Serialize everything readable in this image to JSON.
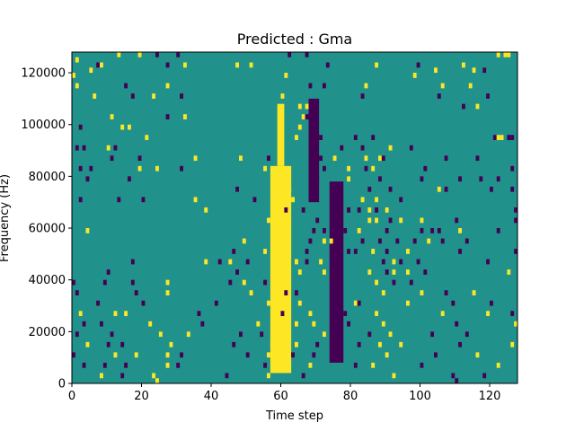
{
  "chart_data": {
    "type": "heatmap",
    "title": "Predicted : Gma",
    "xlabel": "Time step",
    "ylabel": "Frequency (Hz)",
    "xlim": [
      0,
      128
    ],
    "ylim": [
      0,
      128000
    ],
    "xticks": [
      0,
      20,
      40,
      60,
      80,
      100,
      120
    ],
    "yticks": [
      0,
      20000,
      40000,
      60000,
      80000,
      100000,
      120000
    ],
    "xtick_labels": [
      "0",
      "20",
      "40",
      "60",
      "80",
      "100",
      "120"
    ],
    "ytick_labels": [
      "0",
      "20000",
      "40000",
      "60000",
      "80000",
      "100000",
      "120000"
    ],
    "grid": false,
    "n_time_steps": 128,
    "n_freq_bins": 64,
    "colors": {
      "background": "#21918c",
      "high": "#fde725",
      "low": "#440154"
    },
    "vertical_bands": [
      {
        "value": "high",
        "x_start": 57,
        "x_end": 62,
        "freq_start": 4000,
        "freq_end": 84000
      },
      {
        "value": "high",
        "x_start": 59,
        "x_end": 60,
        "freq_start": 84000,
        "freq_end": 108000
      },
      {
        "value": "low",
        "x_start": 68,
        "x_end": 70,
        "freq_start": 70000,
        "freq_end": 110000
      },
      {
        "value": "low",
        "x_start": 74,
        "x_end": 77,
        "freq_start": 8000,
        "freq_end": 78000
      }
    ],
    "cells": [
      [
        7,
        122,
        "low"
      ],
      [
        13,
        126,
        "high"
      ],
      [
        19,
        126,
        "high"
      ],
      [
        24,
        126,
        "low"
      ],
      [
        30,
        126,
        "low"
      ],
      [
        62,
        126,
        "low"
      ],
      [
        67,
        126,
        "low"
      ],
      [
        122,
        126,
        "high"
      ],
      [
        124,
        126,
        "high"
      ],
      [
        125,
        126,
        "high"
      ],
      [
        1,
        124,
        "high"
      ],
      [
        8,
        122,
        "high"
      ],
      [
        27,
        122,
        "low"
      ],
      [
        32,
        122,
        "high"
      ],
      [
        47,
        122,
        "high"
      ],
      [
        51,
        122,
        "high"
      ],
      [
        73,
        122,
        "low"
      ],
      [
        87,
        122,
        "high"
      ],
      [
        99,
        122,
        "low"
      ],
      [
        112,
        122,
        "high"
      ],
      [
        0,
        118,
        "high"
      ],
      [
        5,
        120,
        "high"
      ],
      [
        61,
        118,
        "high"
      ],
      [
        98,
        118,
        "high"
      ],
      [
        104,
        120,
        "high"
      ],
      [
        115,
        120,
        "high"
      ],
      [
        118,
        120,
        "low"
      ],
      [
        1,
        114,
        "high"
      ],
      [
        15,
        114,
        "low"
      ],
      [
        27,
        114,
        "high"
      ],
      [
        68,
        114,
        "low"
      ],
      [
        72,
        114,
        "low"
      ],
      [
        84,
        114,
        "high"
      ],
      [
        106,
        114,
        "high"
      ],
      [
        114,
        114,
        "high"
      ],
      [
        6,
        110,
        "high"
      ],
      [
        17,
        110,
        "low"
      ],
      [
        23,
        110,
        "high"
      ],
      [
        31,
        110,
        "low"
      ],
      [
        60,
        110,
        "high"
      ],
      [
        83,
        110,
        "low"
      ],
      [
        105,
        110,
        "low"
      ],
      [
        119,
        110,
        "low"
      ],
      [
        65,
        106,
        "high"
      ],
      [
        66,
        102,
        "high"
      ],
      [
        67,
        106,
        "high"
      ],
      [
        112,
        106,
        "low"
      ],
      [
        116,
        106,
        "high"
      ],
      [
        11,
        102,
        "high"
      ],
      [
        27,
        102,
        "low"
      ],
      [
        32,
        102,
        "high"
      ],
      [
        65,
        98,
        "high"
      ],
      [
        67,
        102,
        "low"
      ],
      [
        2,
        98,
        "low"
      ],
      [
        14,
        98,
        "high"
      ],
      [
        16,
        98,
        "high"
      ],
      [
        71,
        94,
        "low"
      ],
      [
        86,
        94,
        "low"
      ],
      [
        121,
        94,
        "low"
      ],
      [
        122,
        94,
        "high"
      ],
      [
        123,
        94,
        "high"
      ],
      [
        125,
        94,
        "low"
      ],
      [
        126,
        94,
        "low"
      ],
      [
        21,
        94,
        "high"
      ],
      [
        64,
        94,
        "high"
      ],
      [
        81,
        94,
        "low"
      ],
      [
        91,
        90,
        "high"
      ],
      [
        97,
        90,
        "low"
      ],
      [
        1,
        90,
        "low"
      ],
      [
        3,
        90,
        "low"
      ],
      [
        10,
        90,
        "high"
      ],
      [
        12,
        90,
        "low"
      ],
      [
        77,
        90,
        "low"
      ],
      [
        83,
        90,
        "low"
      ],
      [
        84,
        86,
        "high"
      ],
      [
        88,
        86,
        "high"
      ],
      [
        89,
        86,
        "low"
      ],
      [
        19,
        86,
        "low"
      ],
      [
        24,
        82,
        "high"
      ],
      [
        35,
        86,
        "high"
      ],
      [
        48,
        86,
        "high"
      ],
      [
        56,
        86,
        "low"
      ],
      [
        71,
        86,
        "low"
      ],
      [
        72,
        82,
        "low"
      ],
      [
        75,
        86,
        "high"
      ],
      [
        107,
        86,
        "low"
      ],
      [
        116,
        86,
        "low"
      ],
      [
        2,
        82,
        "low"
      ],
      [
        5,
        82,
        "low"
      ],
      [
        11,
        86,
        "low"
      ],
      [
        19,
        82,
        "high"
      ],
      [
        31,
        82,
        "low"
      ],
      [
        55,
        82,
        "high"
      ],
      [
        79,
        82,
        "high"
      ],
      [
        84,
        82,
        "low"
      ],
      [
        86,
        82,
        "high"
      ],
      [
        101,
        82,
        "low"
      ],
      [
        126,
        82,
        "low"
      ],
      [
        4,
        78,
        "low"
      ],
      [
        16,
        78,
        "low"
      ],
      [
        70,
        78,
        "low"
      ],
      [
        79,
        78,
        "high"
      ],
      [
        88,
        78,
        "low"
      ],
      [
        100,
        78,
        "low"
      ],
      [
        111,
        78,
        "low"
      ],
      [
        117,
        78,
        "low"
      ],
      [
        122,
        78,
        "low"
      ],
      [
        47,
        74,
        "low"
      ],
      [
        62,
        74,
        "high"
      ],
      [
        85,
        74,
        "low"
      ],
      [
        91,
        74,
        "low"
      ],
      [
        105,
        74,
        "high"
      ],
      [
        107,
        74,
        "low"
      ],
      [
        120,
        74,
        "low"
      ],
      [
        126,
        74,
        "low"
      ],
      [
        2,
        70,
        "low"
      ],
      [
        13,
        70,
        "low"
      ],
      [
        20,
        70,
        "low"
      ],
      [
        35,
        70,
        "high"
      ],
      [
        52,
        70,
        "low"
      ],
      [
        63,
        70,
        "high"
      ],
      [
        75,
        70,
        "low"
      ],
      [
        83,
        70,
        "high"
      ],
      [
        87,
        70,
        "high"
      ],
      [
        94,
        70,
        "low"
      ],
      [
        38,
        66,
        "high"
      ],
      [
        58,
        66,
        "high"
      ],
      [
        61,
        66,
        "low"
      ],
      [
        66,
        66,
        "low"
      ],
      [
        79,
        66,
        "low"
      ],
      [
        82,
        66,
        "low"
      ],
      [
        85,
        66,
        "high"
      ],
      [
        87,
        66,
        "low"
      ],
      [
        90,
        66,
        "high"
      ],
      [
        127,
        66,
        "low"
      ],
      [
        56,
        62,
        "high"
      ],
      [
        70,
        62,
        "low"
      ],
      [
        85,
        62,
        "high"
      ],
      [
        87,
        62,
        "high"
      ],
      [
        91,
        62,
        "low"
      ],
      [
        94,
        62,
        "high"
      ],
      [
        100,
        62,
        "high"
      ],
      [
        110,
        62,
        "low"
      ],
      [
        127,
        62,
        "low"
      ],
      [
        4,
        58,
        "high"
      ],
      [
        69,
        58,
        "low"
      ],
      [
        72,
        58,
        "low"
      ],
      [
        78,
        58,
        "low"
      ],
      [
        82,
        58,
        "high"
      ],
      [
        90,
        58,
        "low"
      ],
      [
        100,
        58,
        "low"
      ],
      [
        103,
        58,
        "low"
      ],
      [
        105,
        58,
        "low"
      ],
      [
        111,
        58,
        "high"
      ],
      [
        122,
        58,
        "low"
      ],
      [
        49,
        54,
        "high"
      ],
      [
        68,
        54,
        "low"
      ],
      [
        72,
        54,
        "high"
      ],
      [
        74,
        54,
        "high"
      ],
      [
        83,
        54,
        "low"
      ],
      [
        88,
        54,
        "low"
      ],
      [
        93,
        54,
        "low"
      ],
      [
        98,
        54,
        "low"
      ],
      [
        102,
        54,
        "high"
      ],
      [
        106,
        54,
        "low"
      ],
      [
        113,
        54,
        "low"
      ],
      [
        46,
        50,
        "low"
      ],
      [
        55,
        50,
        "high"
      ],
      [
        67,
        50,
        "low"
      ],
      [
        79,
        50,
        "low"
      ],
      [
        81,
        50,
        "low"
      ],
      [
        86,
        50,
        "high"
      ],
      [
        90,
        50,
        "low"
      ],
      [
        96,
        50,
        "high"
      ],
      [
        111,
        50,
        "low"
      ],
      [
        127,
        50,
        "low"
      ],
      [
        17,
        46,
        "low"
      ],
      [
        38,
        46,
        "high"
      ],
      [
        42,
        46,
        "low"
      ],
      [
        45,
        46,
        "high"
      ],
      [
        50,
        46,
        "low"
      ],
      [
        64,
        46,
        "high"
      ],
      [
        67,
        46,
        "low"
      ],
      [
        71,
        46,
        "high"
      ],
      [
        89,
        46,
        "low"
      ],
      [
        92,
        46,
        "high"
      ],
      [
        94,
        46,
        "low"
      ],
      [
        99,
        46,
        "low"
      ],
      [
        119,
        46,
        "low"
      ],
      [
        10,
        42,
        "low"
      ],
      [
        47,
        42,
        "low"
      ],
      [
        65,
        42,
        "high"
      ],
      [
        72,
        42,
        "high"
      ],
      [
        85,
        42,
        "high"
      ],
      [
        90,
        42,
        "low"
      ],
      [
        92,
        42,
        "high"
      ],
      [
        96,
        42,
        "high"
      ],
      [
        101,
        42,
        "low"
      ],
      [
        125,
        42,
        "high"
      ],
      [
        0,
        38,
        "low"
      ],
      [
        9,
        38,
        "low"
      ],
      [
        17,
        38,
        "low"
      ],
      [
        27,
        38,
        "high"
      ],
      [
        45,
        38,
        "low"
      ],
      [
        49,
        38,
        "high"
      ],
      [
        55,
        38,
        "low"
      ],
      [
        61,
        38,
        "high"
      ],
      [
        87,
        38,
        "high"
      ],
      [
        92,
        38,
        "low"
      ],
      [
        97,
        38,
        "low"
      ],
      [
        1,
        34,
        "low"
      ],
      [
        18,
        34,
        "low"
      ],
      [
        27,
        34,
        "high"
      ],
      [
        51,
        34,
        "high"
      ],
      [
        61,
        34,
        "low"
      ],
      [
        64,
        34,
        "low"
      ],
      [
        89,
        34,
        "high"
      ],
      [
        100,
        34,
        "high"
      ],
      [
        107,
        34,
        "low"
      ],
      [
        115,
        34,
        "high"
      ],
      [
        7,
        30,
        "low"
      ],
      [
        20,
        30,
        "low"
      ],
      [
        41,
        30,
        "low"
      ],
      [
        56,
        30,
        "high"
      ],
      [
        65,
        30,
        "high"
      ],
      [
        81,
        30,
        "high"
      ],
      [
        82,
        30,
        "low"
      ],
      [
        96,
        30,
        "high"
      ],
      [
        109,
        30,
        "low"
      ],
      [
        120,
        30,
        "low"
      ],
      [
        2,
        26,
        "high"
      ],
      [
        12,
        26,
        "high"
      ],
      [
        15,
        26,
        "high"
      ],
      [
        36,
        26,
        "low"
      ],
      [
        60,
        26,
        "low"
      ],
      [
        68,
        26,
        "high"
      ],
      [
        78,
        26,
        "low"
      ],
      [
        87,
        26,
        "high"
      ],
      [
        106,
        26,
        "high"
      ],
      [
        119,
        26,
        "high"
      ],
      [
        126,
        26,
        "low"
      ],
      [
        3,
        22,
        "low"
      ],
      [
        8,
        22,
        "low"
      ],
      [
        22,
        22,
        "high"
      ],
      [
        37,
        22,
        "low"
      ],
      [
        53,
        22,
        "high"
      ],
      [
        64,
        22,
        "high"
      ],
      [
        69,
        22,
        "high"
      ],
      [
        79,
        22,
        "low"
      ],
      [
        89,
        22,
        "high"
      ],
      [
        110,
        22,
        "low"
      ],
      [
        127,
        22,
        "high"
      ],
      [
        1,
        18,
        "low"
      ],
      [
        11,
        18,
        "low"
      ],
      [
        25,
        18,
        "high"
      ],
      [
        33,
        18,
        "high"
      ],
      [
        48,
        18,
        "low"
      ],
      [
        54,
        18,
        "low"
      ],
      [
        72,
        18,
        "high"
      ],
      [
        85,
        18,
        "low"
      ],
      [
        91,
        18,
        "high"
      ],
      [
        103,
        18,
        "low"
      ],
      [
        113,
        18,
        "low"
      ],
      [
        4,
        14,
        "high"
      ],
      [
        10,
        14,
        "low"
      ],
      [
        14,
        14,
        "low"
      ],
      [
        28,
        14,
        "high"
      ],
      [
        46,
        14,
        "low"
      ],
      [
        57,
        14,
        "high"
      ],
      [
        64,
        14,
        "high"
      ],
      [
        70,
        14,
        "low"
      ],
      [
        82,
        14,
        "low"
      ],
      [
        88,
        14,
        "high"
      ],
      [
        94,
        14,
        "high"
      ],
      [
        111,
        14,
        "low"
      ],
      [
        126,
        14,
        "high"
      ],
      [
        0,
        10,
        "low"
      ],
      [
        12,
        10,
        "high"
      ],
      [
        18,
        10,
        "high"
      ],
      [
        27,
        10,
        "high"
      ],
      [
        31,
        10,
        "low"
      ],
      [
        50,
        10,
        "low"
      ],
      [
        56,
        10,
        "high"
      ],
      [
        63,
        10,
        "low"
      ],
      [
        69,
        10,
        "low"
      ],
      [
        76,
        10,
        "low"
      ],
      [
        90,
        10,
        "high"
      ],
      [
        104,
        10,
        "low"
      ],
      [
        116,
        10,
        "high"
      ],
      [
        3,
        6,
        "low"
      ],
      [
        9,
        6,
        "low"
      ],
      [
        15,
        6,
        "low"
      ],
      [
        27,
        6,
        "high"
      ],
      [
        30,
        6,
        "low"
      ],
      [
        55,
        6,
        "low"
      ],
      [
        68,
        6,
        "high"
      ],
      [
        81,
        6,
        "low"
      ],
      [
        86,
        6,
        "high"
      ],
      [
        100,
        6,
        "low"
      ],
      [
        122,
        6,
        "high"
      ],
      [
        8,
        2,
        "high"
      ],
      [
        14,
        2,
        "low"
      ],
      [
        23,
        2,
        "high"
      ],
      [
        44,
        2,
        "low"
      ],
      [
        56,
        2,
        "high"
      ],
      [
        66,
        2,
        "low"
      ],
      [
        92,
        2,
        "high"
      ],
      [
        109,
        2,
        "low"
      ],
      [
        118,
        2,
        "low"
      ],
      [
        24,
        0,
        "high"
      ],
      [
        110,
        0,
        "low"
      ]
    ]
  }
}
